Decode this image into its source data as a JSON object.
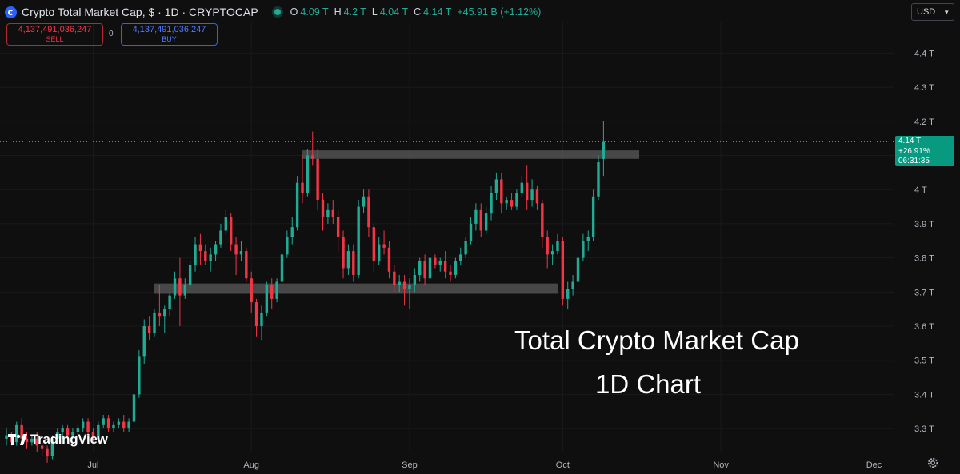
{
  "header": {
    "symbol": "Crypto Total Market Cap, $ · 1D · CRYPTOCAP",
    "ohlc": {
      "o_label": "O",
      "o_value": "4.09 T",
      "h_label": "H",
      "h_value": "4.2 T",
      "l_label": "L",
      "l_value": "4.04 T",
      "c_label": "C",
      "c_value": "4.14 T",
      "change": "+45.91 B (+1.12%)"
    }
  },
  "trade": {
    "sell_price": "4,137,491,036,247",
    "sell_label": "SELL",
    "spread": "0",
    "buy_price": "4,137,491,036,247",
    "buy_label": "BUY"
  },
  "currency": {
    "value": "USD"
  },
  "price_tag": {
    "price": "4.14 T",
    "change": "+26.91%",
    "countdown": "06:31:35"
  },
  "branding": {
    "name": "TradingView"
  },
  "annotation": {
    "line1": "Total Crypto Market Cap",
    "line2": "1D Chart"
  },
  "colors": {
    "up": "#22ab94",
    "down": "#f23645",
    "background": "#0f0f0f",
    "zone": "#6a6a6a",
    "price_line": "#22ab94"
  },
  "chart_data": {
    "type": "candlestick",
    "interval": "1D",
    "y_unit": "T USD",
    "ylim": [
      3.23,
      4.49
    ],
    "y_ticks": [
      3.3,
      3.4,
      3.5,
      3.6,
      3.7,
      3.8,
      3.9,
      4.0,
      4.1,
      4.2,
      4.3,
      4.4
    ],
    "y_tick_labels": [
      "3.3 T",
      "3.4 T",
      "3.5 T",
      "3.6 T",
      "3.7 T",
      "3.8 T",
      "3.9 T",
      "4 T",
      "4.1 T",
      "4.2 T",
      "4.3 T",
      "4.4 T"
    ],
    "x_start": "2025-06-14",
    "x_end": "2025-12-05",
    "x_ticks": [
      {
        "date": "2025-07-01",
        "label": "Jul"
      },
      {
        "date": "2025-08-01",
        "label": "Aug"
      },
      {
        "date": "2025-09-01",
        "label": "Sep"
      },
      {
        "date": "2025-10-01",
        "label": "Oct"
      },
      {
        "date": "2025-11-01",
        "label": "Nov"
      },
      {
        "date": "2025-12-01",
        "label": "Dec"
      }
    ],
    "zones": [
      {
        "name": "resistance",
        "from_date": "2025-08-11",
        "to_date": "2025-10-16",
        "low": 4.09,
        "high": 4.115
      },
      {
        "name": "support",
        "from_date": "2025-07-13",
        "to_date": "2025-09-30",
        "low": 3.695,
        "high": 3.725
      }
    ],
    "last_price": 4.14,
    "candles": [
      {
        "date": "2025-06-14",
        "o": 3.27,
        "h": 3.3,
        "l": 3.25,
        "c": 3.28
      },
      {
        "date": "2025-06-15",
        "o": 3.28,
        "h": 3.29,
        "l": 3.25,
        "c": 3.26
      },
      {
        "date": "2025-06-16",
        "o": 3.26,
        "h": 3.32,
        "l": 3.25,
        "c": 3.31
      },
      {
        "date": "2025-06-17",
        "o": 3.31,
        "h": 3.33,
        "l": 3.26,
        "c": 3.27
      },
      {
        "date": "2025-06-18",
        "o": 3.27,
        "h": 3.29,
        "l": 3.24,
        "c": 3.26
      },
      {
        "date": "2025-06-19",
        "o": 3.26,
        "h": 3.28,
        "l": 3.25,
        "c": 3.27
      },
      {
        "date": "2025-06-20",
        "o": 3.27,
        "h": 3.29,
        "l": 3.23,
        "c": 3.25
      },
      {
        "date": "2025-06-21",
        "o": 3.25,
        "h": 3.26,
        "l": 3.22,
        "c": 3.24
      },
      {
        "date": "2025-06-22",
        "o": 3.24,
        "h": 3.25,
        "l": 3.2,
        "c": 3.22
      },
      {
        "date": "2025-06-23",
        "o": 3.22,
        "h": 3.28,
        "l": 3.21,
        "c": 3.27
      },
      {
        "date": "2025-06-24",
        "o": 3.27,
        "h": 3.3,
        "l": 3.26,
        "c": 3.29
      },
      {
        "date": "2025-06-25",
        "o": 3.29,
        "h": 3.31,
        "l": 3.27,
        "c": 3.3
      },
      {
        "date": "2025-06-26",
        "o": 3.3,
        "h": 3.31,
        "l": 3.27,
        "c": 3.28
      },
      {
        "date": "2025-06-27",
        "o": 3.28,
        "h": 3.3,
        "l": 3.27,
        "c": 3.29
      },
      {
        "date": "2025-06-28",
        "o": 3.29,
        "h": 3.31,
        "l": 3.28,
        "c": 3.3
      },
      {
        "date": "2025-06-29",
        "o": 3.3,
        "h": 3.33,
        "l": 3.29,
        "c": 3.32
      },
      {
        "date": "2025-06-30",
        "o": 3.32,
        "h": 3.33,
        "l": 3.28,
        "c": 3.29
      },
      {
        "date": "2025-07-01",
        "o": 3.29,
        "h": 3.3,
        "l": 3.26,
        "c": 3.27
      },
      {
        "date": "2025-07-02",
        "o": 3.27,
        "h": 3.32,
        "l": 3.26,
        "c": 3.31
      },
      {
        "date": "2025-07-03",
        "o": 3.31,
        "h": 3.34,
        "l": 3.3,
        "c": 3.33
      },
      {
        "date": "2025-07-04",
        "o": 3.33,
        "h": 3.34,
        "l": 3.29,
        "c": 3.3
      },
      {
        "date": "2025-07-05",
        "o": 3.3,
        "h": 3.32,
        "l": 3.29,
        "c": 3.31
      },
      {
        "date": "2025-07-06",
        "o": 3.31,
        "h": 3.33,
        "l": 3.3,
        "c": 3.32
      },
      {
        "date": "2025-07-07",
        "o": 3.32,
        "h": 3.34,
        "l": 3.29,
        "c": 3.3
      },
      {
        "date": "2025-07-08",
        "o": 3.3,
        "h": 3.33,
        "l": 3.29,
        "c": 3.32
      },
      {
        "date": "2025-07-09",
        "o": 3.32,
        "h": 3.41,
        "l": 3.31,
        "c": 3.4
      },
      {
        "date": "2025-07-10",
        "o": 3.4,
        "h": 3.53,
        "l": 3.39,
        "c": 3.51
      },
      {
        "date": "2025-07-11",
        "o": 3.51,
        "h": 3.62,
        "l": 3.49,
        "c": 3.6
      },
      {
        "date": "2025-07-12",
        "o": 3.6,
        "h": 3.63,
        "l": 3.56,
        "c": 3.58
      },
      {
        "date": "2025-07-13",
        "o": 3.58,
        "h": 3.65,
        "l": 3.57,
        "c": 3.64
      },
      {
        "date": "2025-07-14",
        "o": 3.64,
        "h": 3.72,
        "l": 3.6,
        "c": 3.63
      },
      {
        "date": "2025-07-15",
        "o": 3.63,
        "h": 3.66,
        "l": 3.58,
        "c": 3.65
      },
      {
        "date": "2025-07-16",
        "o": 3.65,
        "h": 3.7,
        "l": 3.63,
        "c": 3.69
      },
      {
        "date": "2025-07-17",
        "o": 3.69,
        "h": 3.76,
        "l": 3.68,
        "c": 3.74
      },
      {
        "date": "2025-07-18",
        "o": 3.74,
        "h": 3.8,
        "l": 3.6,
        "c": 3.69
      },
      {
        "date": "2025-07-19",
        "o": 3.69,
        "h": 3.74,
        "l": 3.68,
        "c": 3.72
      },
      {
        "date": "2025-07-20",
        "o": 3.72,
        "h": 3.79,
        "l": 3.71,
        "c": 3.78
      },
      {
        "date": "2025-07-21",
        "o": 3.78,
        "h": 3.86,
        "l": 3.76,
        "c": 3.84
      },
      {
        "date": "2025-07-22",
        "o": 3.84,
        "h": 3.87,
        "l": 3.78,
        "c": 3.82
      },
      {
        "date": "2025-07-23",
        "o": 3.82,
        "h": 3.84,
        "l": 3.78,
        "c": 3.79
      },
      {
        "date": "2025-07-24",
        "o": 3.79,
        "h": 3.83,
        "l": 3.76,
        "c": 3.81
      },
      {
        "date": "2025-07-25",
        "o": 3.81,
        "h": 3.85,
        "l": 3.79,
        "c": 3.84
      },
      {
        "date": "2025-07-26",
        "o": 3.84,
        "h": 3.9,
        "l": 3.83,
        "c": 3.88
      },
      {
        "date": "2025-07-27",
        "o": 3.88,
        "h": 3.94,
        "l": 3.87,
        "c": 3.92
      },
      {
        "date": "2025-07-28",
        "o": 3.92,
        "h": 3.93,
        "l": 3.82,
        "c": 3.84
      },
      {
        "date": "2025-07-29",
        "o": 3.84,
        "h": 3.86,
        "l": 3.75,
        "c": 3.81
      },
      {
        "date": "2025-07-30",
        "o": 3.81,
        "h": 3.85,
        "l": 3.79,
        "c": 3.82
      },
      {
        "date": "2025-07-31",
        "o": 3.82,
        "h": 3.83,
        "l": 3.73,
        "c": 3.74
      },
      {
        "date": "2025-08-01",
        "o": 3.74,
        "h": 3.76,
        "l": 3.64,
        "c": 3.67
      },
      {
        "date": "2025-08-02",
        "o": 3.67,
        "h": 3.68,
        "l": 3.57,
        "c": 3.6
      },
      {
        "date": "2025-08-03",
        "o": 3.6,
        "h": 3.66,
        "l": 3.56,
        "c": 3.64
      },
      {
        "date": "2025-08-04",
        "o": 3.64,
        "h": 3.73,
        "l": 3.63,
        "c": 3.72
      },
      {
        "date": "2025-08-05",
        "o": 3.72,
        "h": 3.74,
        "l": 3.65,
        "c": 3.68
      },
      {
        "date": "2025-08-06",
        "o": 3.68,
        "h": 3.74,
        "l": 3.67,
        "c": 3.73
      },
      {
        "date": "2025-08-07",
        "o": 3.73,
        "h": 3.82,
        "l": 3.72,
        "c": 3.81
      },
      {
        "date": "2025-08-08",
        "o": 3.81,
        "h": 3.88,
        "l": 3.8,
        "c": 3.86
      },
      {
        "date": "2025-08-09",
        "o": 3.86,
        "h": 3.92,
        "l": 3.84,
        "c": 3.89
      },
      {
        "date": "2025-08-10",
        "o": 3.89,
        "h": 4.04,
        "l": 3.88,
        "c": 4.02
      },
      {
        "date": "2025-08-11",
        "o": 4.02,
        "h": 4.1,
        "l": 3.96,
        "c": 3.99
      },
      {
        "date": "2025-08-12",
        "o": 3.99,
        "h": 4.12,
        "l": 3.98,
        "c": 4.1
      },
      {
        "date": "2025-08-13",
        "o": 4.1,
        "h": 4.17,
        "l": 4.07,
        "c": 4.09
      },
      {
        "date": "2025-08-14",
        "o": 4.09,
        "h": 4.12,
        "l": 3.94,
        "c": 3.97
      },
      {
        "date": "2025-08-15",
        "o": 3.97,
        "h": 3.99,
        "l": 3.88,
        "c": 3.92
      },
      {
        "date": "2025-08-16",
        "o": 3.92,
        "h": 3.96,
        "l": 3.9,
        "c": 3.94
      },
      {
        "date": "2025-08-17",
        "o": 3.94,
        "h": 3.97,
        "l": 3.9,
        "c": 3.92
      },
      {
        "date": "2025-08-18",
        "o": 3.92,
        "h": 3.94,
        "l": 3.82,
        "c": 3.86
      },
      {
        "date": "2025-08-19",
        "o": 3.86,
        "h": 3.88,
        "l": 3.74,
        "c": 3.77
      },
      {
        "date": "2025-08-20",
        "o": 3.77,
        "h": 3.84,
        "l": 3.75,
        "c": 3.82
      },
      {
        "date": "2025-08-21",
        "o": 3.82,
        "h": 3.84,
        "l": 3.73,
        "c": 3.75
      },
      {
        "date": "2025-08-22",
        "o": 3.75,
        "h": 3.97,
        "l": 3.74,
        "c": 3.95
      },
      {
        "date": "2025-08-23",
        "o": 3.95,
        "h": 4.0,
        "l": 3.93,
        "c": 3.98
      },
      {
        "date": "2025-08-24",
        "o": 3.98,
        "h": 4.0,
        "l": 3.86,
        "c": 3.89
      },
      {
        "date": "2025-08-25",
        "o": 3.89,
        "h": 3.9,
        "l": 3.76,
        "c": 3.79
      },
      {
        "date": "2025-08-26",
        "o": 3.79,
        "h": 3.86,
        "l": 3.78,
        "c": 3.84
      },
      {
        "date": "2025-08-27",
        "o": 3.84,
        "h": 3.88,
        "l": 3.81,
        "c": 3.83
      },
      {
        "date": "2025-08-28",
        "o": 3.83,
        "h": 3.85,
        "l": 3.74,
        "c": 3.76
      },
      {
        "date": "2025-08-29",
        "o": 3.76,
        "h": 3.78,
        "l": 3.7,
        "c": 3.72
      },
      {
        "date": "2025-08-30",
        "o": 3.72,
        "h": 3.75,
        "l": 3.7,
        "c": 3.73
      },
      {
        "date": "2025-08-31",
        "o": 3.73,
        "h": 3.75,
        "l": 3.66,
        "c": 3.71
      },
      {
        "date": "2025-09-01",
        "o": 3.71,
        "h": 3.74,
        "l": 3.65,
        "c": 3.72
      },
      {
        "date": "2025-09-02",
        "o": 3.72,
        "h": 3.77,
        "l": 3.7,
        "c": 3.75
      },
      {
        "date": "2025-09-03",
        "o": 3.75,
        "h": 3.8,
        "l": 3.73,
        "c": 3.79
      },
      {
        "date": "2025-09-04",
        "o": 3.79,
        "h": 3.81,
        "l": 3.72,
        "c": 3.74
      },
      {
        "date": "2025-09-05",
        "o": 3.74,
        "h": 3.82,
        "l": 3.73,
        "c": 3.8
      },
      {
        "date": "2025-09-06",
        "o": 3.8,
        "h": 3.81,
        "l": 3.77,
        "c": 3.78
      },
      {
        "date": "2025-09-07",
        "o": 3.78,
        "h": 3.8,
        "l": 3.76,
        "c": 3.79
      },
      {
        "date": "2025-09-08",
        "o": 3.79,
        "h": 3.82,
        "l": 3.74,
        "c": 3.76
      },
      {
        "date": "2025-09-09",
        "o": 3.76,
        "h": 3.78,
        "l": 3.73,
        "c": 3.75
      },
      {
        "date": "2025-09-10",
        "o": 3.75,
        "h": 3.8,
        "l": 3.74,
        "c": 3.79
      },
      {
        "date": "2025-09-11",
        "o": 3.79,
        "h": 3.83,
        "l": 3.78,
        "c": 3.81
      },
      {
        "date": "2025-09-12",
        "o": 3.81,
        "h": 3.86,
        "l": 3.8,
        "c": 3.85
      },
      {
        "date": "2025-09-13",
        "o": 3.85,
        "h": 3.92,
        "l": 3.84,
        "c": 3.9
      },
      {
        "date": "2025-09-14",
        "o": 3.9,
        "h": 3.96,
        "l": 3.88,
        "c": 3.94
      },
      {
        "date": "2025-09-15",
        "o": 3.94,
        "h": 3.96,
        "l": 3.86,
        "c": 3.88
      },
      {
        "date": "2025-09-16",
        "o": 3.88,
        "h": 3.95,
        "l": 3.87,
        "c": 3.93
      },
      {
        "date": "2025-09-17",
        "o": 3.93,
        "h": 4.01,
        "l": 3.91,
        "c": 3.99
      },
      {
        "date": "2025-09-18",
        "o": 3.99,
        "h": 4.05,
        "l": 3.97,
        "c": 4.03
      },
      {
        "date": "2025-09-19",
        "o": 4.03,
        "h": 4.05,
        "l": 3.93,
        "c": 3.96
      },
      {
        "date": "2025-09-20",
        "o": 3.96,
        "h": 3.98,
        "l": 3.94,
        "c": 3.97
      },
      {
        "date": "2025-09-21",
        "o": 3.97,
        "h": 3.99,
        "l": 3.94,
        "c": 3.95
      },
      {
        "date": "2025-09-22",
        "o": 3.95,
        "h": 4.0,
        "l": 3.94,
        "c": 3.99
      },
      {
        "date": "2025-09-23",
        "o": 3.99,
        "h": 4.04,
        "l": 3.98,
        "c": 4.02
      },
      {
        "date": "2025-09-24",
        "o": 4.02,
        "h": 4.07,
        "l": 3.94,
        "c": 3.97
      },
      {
        "date": "2025-09-25",
        "o": 3.97,
        "h": 4.03,
        "l": 3.95,
        "c": 4.0
      },
      {
        "date": "2025-09-26",
        "o": 4.0,
        "h": 4.01,
        "l": 3.94,
        "c": 3.96
      },
      {
        "date": "2025-09-27",
        "o": 3.96,
        "h": 3.97,
        "l": 3.83,
        "c": 3.86
      },
      {
        "date": "2025-09-28",
        "o": 3.86,
        "h": 3.88,
        "l": 3.77,
        "c": 3.81
      },
      {
        "date": "2025-09-29",
        "o": 3.81,
        "h": 3.84,
        "l": 3.78,
        "c": 3.82
      },
      {
        "date": "2025-09-30",
        "o": 3.82,
        "h": 3.87,
        "l": 3.81,
        "c": 3.85
      },
      {
        "date": "2025-10-01",
        "o": 3.85,
        "h": 3.86,
        "l": 3.66,
        "c": 3.68
      },
      {
        "date": "2025-10-02",
        "o": 3.68,
        "h": 3.73,
        "l": 3.65,
        "c": 3.71
      },
      {
        "date": "2025-10-03",
        "o": 3.71,
        "h": 3.75,
        "l": 3.69,
        "c": 3.73
      },
      {
        "date": "2025-10-04",
        "o": 3.73,
        "h": 3.82,
        "l": 3.72,
        "c": 3.8
      },
      {
        "date": "2025-10-05",
        "o": 3.8,
        "h": 3.87,
        "l": 3.79,
        "c": 3.85
      },
      {
        "date": "2025-10-06",
        "o": 3.85,
        "h": 3.88,
        "l": 3.82,
        "c": 3.86
      },
      {
        "date": "2025-10-07",
        "o": 3.86,
        "h": 4.0,
        "l": 3.85,
        "c": 3.98
      },
      {
        "date": "2025-10-08",
        "o": 3.98,
        "h": 4.1,
        "l": 3.97,
        "c": 4.08
      },
      {
        "date": "2025-10-09",
        "o": 4.09,
        "h": 4.2,
        "l": 4.04,
        "c": 4.14
      }
    ]
  }
}
